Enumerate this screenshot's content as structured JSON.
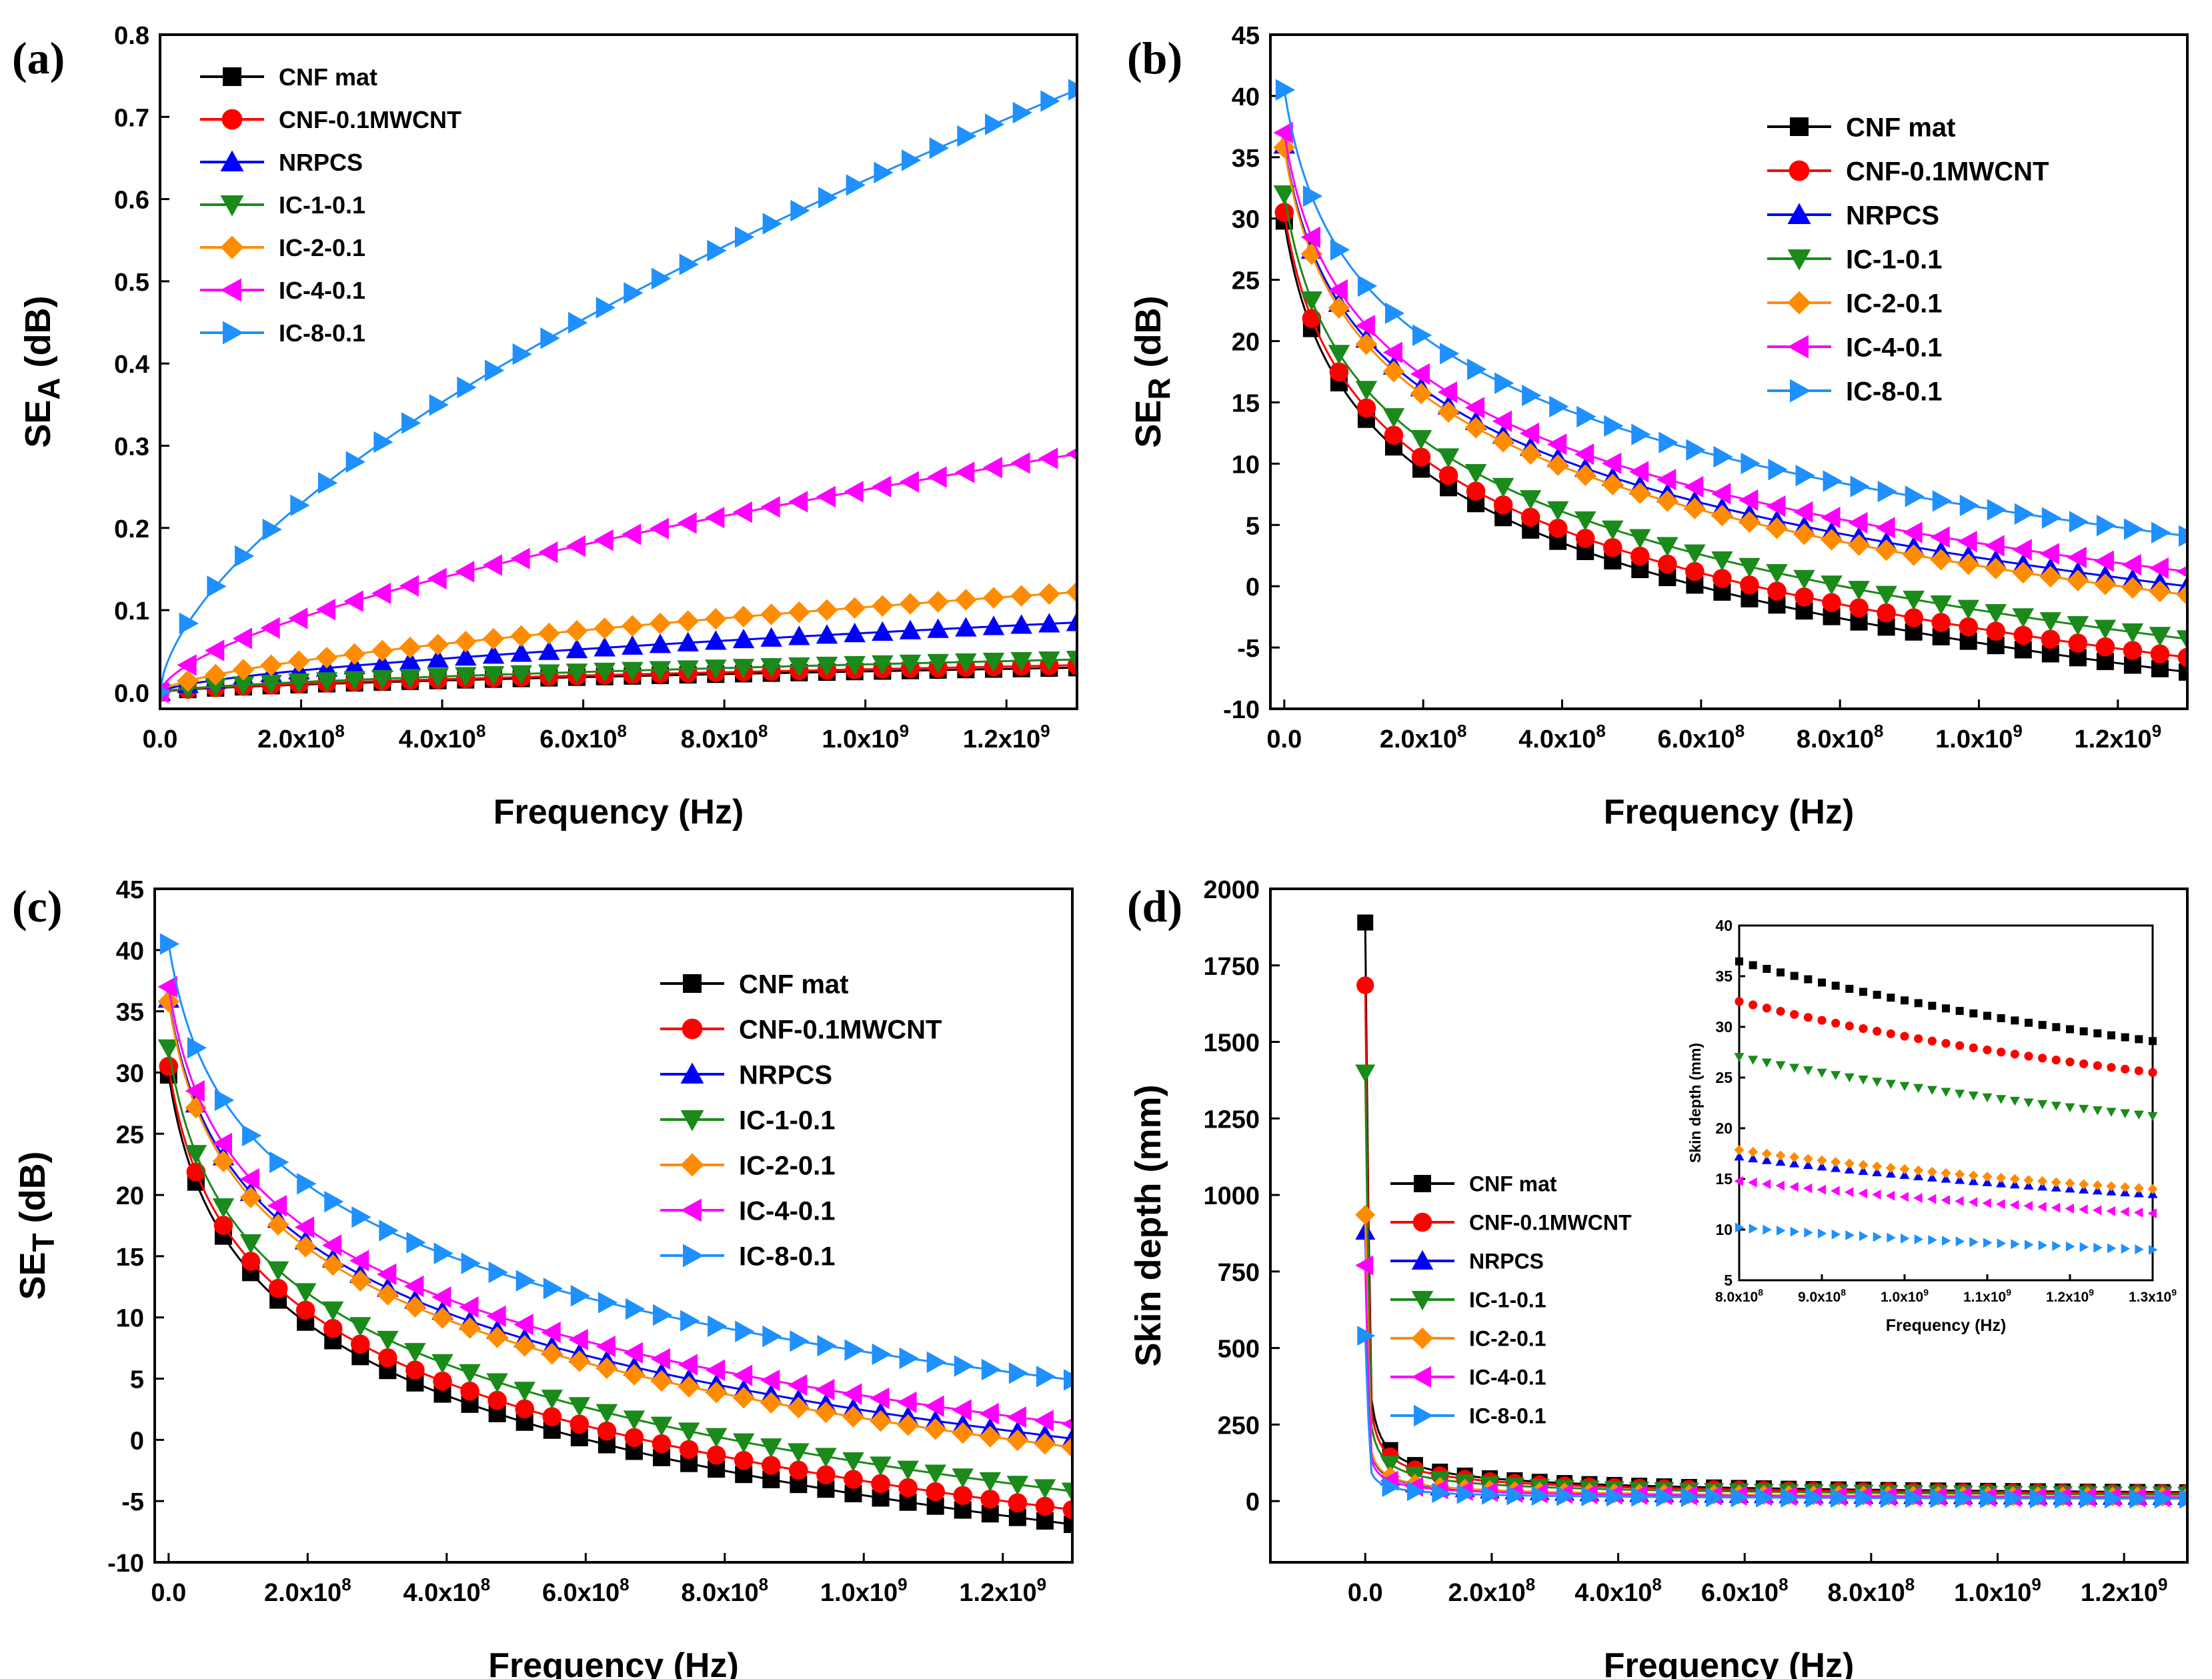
{
  "chart_data": [
    {
      "id": "a",
      "type": "line",
      "panel_label": "(a)",
      "xlabel": "Frequency (Hz)",
      "ylabel_main": "SE",
      "ylabel_sub": "A",
      "ylabel_unit": " (dB)",
      "xlim": [
        0,
        1300000000.0
      ],
      "ylim": [
        -0.02,
        0.8
      ],
      "yticks": [
        0.0,
        0.1,
        0.2,
        0.3,
        0.4,
        0.5,
        0.6,
        0.7,
        0.8
      ],
      "ytick_labels": [
        "0.0",
        "0.1",
        "0.2",
        "0.3",
        "0.4",
        "0.5",
        "0.6",
        "0.7",
        "0.8"
      ],
      "xticks": [
        0,
        200000000.0,
        400000000.0,
        600000000.0,
        800000000.0,
        1000000000.0,
        1200000000.0
      ],
      "xtick_labels": [
        {
          "m": "0.0",
          "e": ""
        },
        {
          "m": "2.0x10",
          "e": "8"
        },
        {
          "m": "4.0x10",
          "e": "8"
        },
        {
          "m": "6.0x10",
          "e": "8"
        },
        {
          "m": "8.0x10",
          "e": "8"
        },
        {
          "m": "1.0x10",
          "e": "9"
        },
        {
          "m": "1.2x10",
          "e": "9"
        }
      ],
      "legend_position": "top-left",
      "series": [
        {
          "name": "CNF mat",
          "x": [
            0,
            1300000000.0
          ],
          "y": [
            0.0,
            0.03
          ]
        },
        {
          "name": "CNF-0.1MWCNT",
          "x": [
            0,
            1300000000.0
          ],
          "y": [
            0.0,
            0.033
          ]
        },
        {
          "name": "NRPCS",
          "x": [
            0,
            1300000000.0
          ],
          "y": [
            0.0,
            0.085
          ]
        },
        {
          "name": "IC-1-0.1",
          "x": [
            0,
            1300000000.0
          ],
          "y": [
            0.0,
            0.04
          ]
        },
        {
          "name": "IC-2-0.1",
          "x": [
            0,
            1300000000.0
          ],
          "y": [
            0.0,
            0.122
          ]
        },
        {
          "name": "IC-4-0.1",
          "x": [
            0,
            1300000000.0
          ],
          "y": [
            0.0,
            0.29
          ]
        },
        {
          "name": "IC-8-0.1",
          "x": [
            0,
            1300000000.0
          ],
          "y": [
            0.0,
            0.733
          ]
        }
      ]
    },
    {
      "id": "b",
      "type": "line",
      "panel_label": "(b)",
      "xlabel": "Frequency (Hz)",
      "ylabel_main": "SE",
      "ylabel_sub": "R",
      "ylabel_unit": " (dB)",
      "xlim": [
        -20000000.0,
        1300000000.0
      ],
      "ylim": [
        -10,
        45
      ],
      "yticks": [
        -10,
        -5,
        0,
        5,
        10,
        15,
        20,
        25,
        30,
        35,
        40,
        45
      ],
      "ytick_labels": [
        "-10",
        "-5",
        "0",
        "5",
        "10",
        "15",
        "20",
        "25",
        "30",
        "35",
        "40",
        "45"
      ],
      "xticks": [
        0,
        200000000.0,
        400000000.0,
        600000000.0,
        800000000.0,
        1000000000.0,
        1200000000.0
      ],
      "xtick_labels": [
        {
          "m": "0.0",
          "e": ""
        },
        {
          "m": "2.0x10",
          "e": "8"
        },
        {
          "m": "4.0x10",
          "e": "8"
        },
        {
          "m": "6.0x10",
          "e": "8"
        },
        {
          "m": "8.0x10",
          "e": "8"
        },
        {
          "m": "1.0x10",
          "e": "9"
        },
        {
          "m": "1.2x10",
          "e": "9"
        }
      ],
      "legend_position": "top-right",
      "series": [
        {
          "name": "CNF mat",
          "start": 29.8,
          "end": -7.0
        },
        {
          "name": "CNF-0.1MWCNT",
          "start": 30.5,
          "end": -5.8
        },
        {
          "name": "NRPCS",
          "start": 36.0,
          "end": 0.0
        },
        {
          "name": "IC-1-0.1",
          "start": 32.0,
          "end": -4.3
        },
        {
          "name": "IC-2-0.1",
          "start": 35.8,
          "end": -0.7
        },
        {
          "name": "IC-4-0.1",
          "start": 37.0,
          "end": 1.2
        },
        {
          "name": "IC-8-0.1",
          "start": 40.5,
          "end": 4.1
        }
      ]
    },
    {
      "id": "c",
      "type": "line",
      "panel_label": "(c)",
      "xlabel": "Frequency (Hz)",
      "ylabel_main": "SE",
      "ylabel_sub": "T",
      "ylabel_unit": " (dB)",
      "xlim": [
        -20000000.0,
        1300000000.0
      ],
      "ylim": [
        -10,
        45
      ],
      "yticks": [
        -10,
        -5,
        0,
        5,
        10,
        15,
        20,
        25,
        30,
        35,
        40,
        45
      ],
      "ytick_labels": [
        "-10",
        "-5",
        "0",
        "5",
        "10",
        "15",
        "20",
        "25",
        "30",
        "35",
        "40",
        "45"
      ],
      "xticks": [
        0,
        200000000.0,
        400000000.0,
        600000000.0,
        800000000.0,
        1000000000.0,
        1200000000.0
      ],
      "xtick_labels": [
        {
          "m": "0.0",
          "e": ""
        },
        {
          "m": "2.0x10",
          "e": "8"
        },
        {
          "m": "4.0x10",
          "e": "8"
        },
        {
          "m": "6.0x10",
          "e": "8"
        },
        {
          "m": "8.0x10",
          "e": "8"
        },
        {
          "m": "1.0x10",
          "e": "9"
        },
        {
          "m": "1.2x10",
          "e": "9"
        }
      ],
      "legend_position": "top-right",
      "series": [
        {
          "name": "CNF mat",
          "start": 29.8,
          "end": -6.9
        },
        {
          "name": "CNF-0.1MWCNT",
          "start": 30.5,
          "end": -5.7
        },
        {
          "name": "NRPCS",
          "start": 36.0,
          "end": 0.1
        },
        {
          "name": "IC-1-0.1",
          "start": 32.0,
          "end": -4.2
        },
        {
          "name": "IC-2-0.1",
          "start": 35.8,
          "end": -0.6
        },
        {
          "name": "IC-4-0.1",
          "start": 37.0,
          "end": 1.3
        },
        {
          "name": "IC-8-0.1",
          "start": 40.5,
          "end": 4.9
        }
      ]
    },
    {
      "id": "d",
      "type": "line",
      "panel_label": "(d)",
      "xlabel": "Frequency (Hz)",
      "ylabel_main": "Skin depth (mm)",
      "ylabel_sub": "",
      "ylabel_unit": "",
      "xlim": [
        -150000000.0,
        1300000000.0
      ],
      "ylim": [
        -200,
        2000
      ],
      "yticks": [
        0,
        250,
        500,
        750,
        1000,
        1250,
        1500,
        1750,
        2000
      ],
      "ytick_labels": [
        "0",
        "250",
        "500",
        "750",
        "1000",
        "1250",
        "1500",
        "1750",
        "2000"
      ],
      "xticks": [
        0,
        200000000.0,
        400000000.0,
        600000000.0,
        800000000.0,
        1000000000.0,
        1200000000.0
      ],
      "xtick_labels": [
        {
          "m": "0.0",
          "e": ""
        },
        {
          "m": "2.0x10",
          "e": "8"
        },
        {
          "m": "4.0x10",
          "e": "8"
        },
        {
          "m": "6.0x10",
          "e": "8"
        },
        {
          "m": "8.0x10",
          "e": "8"
        },
        {
          "m": "1.0x10",
          "e": "9"
        },
        {
          "m": "1.2x10",
          "e": "9"
        }
      ],
      "legend_position": "center-left",
      "series": [
        {
          "name": "CNF mat",
          "start": 1890,
          "end": 29
        },
        {
          "name": "CNF-0.1MWCNT",
          "start": 1685,
          "end": 25.5
        },
        {
          "name": "NRPCS",
          "start": 880,
          "end": 13.5
        },
        {
          "name": "IC-1-0.1",
          "start": 1400,
          "end": 21.2
        },
        {
          "name": "IC-2-0.1",
          "start": 935,
          "end": 14.0
        },
        {
          "name": "IC-4-0.1",
          "start": 770,
          "end": 11.6
        },
        {
          "name": "IC-8-0.1",
          "start": 540,
          "end": 8.0
        }
      ],
      "inset": {
        "xlabel": "Frequency (Hz)",
        "ylabel": "Skin depth (mm)",
        "xlim": [
          800000000.0,
          1300000000.0
        ],
        "ylim": [
          5,
          40
        ],
        "yticks": [
          5,
          10,
          15,
          20,
          25,
          30,
          35,
          40
        ],
        "ytick_labels": [
          "5",
          "10",
          "15",
          "20",
          "25",
          "30",
          "35",
          "40"
        ],
        "xticks": [
          800000000.0,
          900000000.0,
          1000000000.0,
          1100000000.0,
          1200000000.0,
          1300000000.0
        ],
        "xtick_labels": [
          {
            "m": "8.0x10",
            "e": "8"
          },
          {
            "m": "9.0x10",
            "e": "8"
          },
          {
            "m": "1.0x10",
            "e": "9"
          },
          {
            "m": "1.1x10",
            "e": "9"
          },
          {
            "m": "1.2x10",
            "e": "9"
          },
          {
            "m": "1.3x10",
            "e": "9"
          }
        ],
        "series": [
          {
            "name": "CNF mat",
            "start": 36.6,
            "end": 28.6
          },
          {
            "name": "CNF-0.1MWCNT",
            "start": 32.5,
            "end": 25.5
          },
          {
            "name": "NRPCS",
            "start": 17.2,
            "end": 13.5
          },
          {
            "name": "IC-1-0.1",
            "start": 27.0,
            "end": 21.2
          },
          {
            "name": "IC-2-0.1",
            "start": 18.0,
            "end": 14.0
          },
          {
            "name": "IC-4-0.1",
            "start": 14.8,
            "end": 11.6
          },
          {
            "name": "IC-8-0.1",
            "start": 10.3,
            "end": 8.0
          }
        ]
      }
    }
  ],
  "series_styles": [
    {
      "name": "CNF mat",
      "color": "#000000",
      "marker": "square"
    },
    {
      "name": "CNF-0.1MWCNT",
      "color": "#ff0000",
      "marker": "circle"
    },
    {
      "name": "NRPCS",
      "color": "#0000ff",
      "marker": "triangle-up"
    },
    {
      "name": "IC-1-0.1",
      "color": "#1a8a1a",
      "marker": "triangle-down"
    },
    {
      "name": "IC-2-0.1",
      "color": "#ff8c00",
      "marker": "diamond"
    },
    {
      "name": "IC-4-0.1",
      "color": "#ff00ff",
      "marker": "triangle-left"
    },
    {
      "name": "IC-8-0.1",
      "color": "#1e90ff",
      "marker": "triangle-right"
    }
  ]
}
